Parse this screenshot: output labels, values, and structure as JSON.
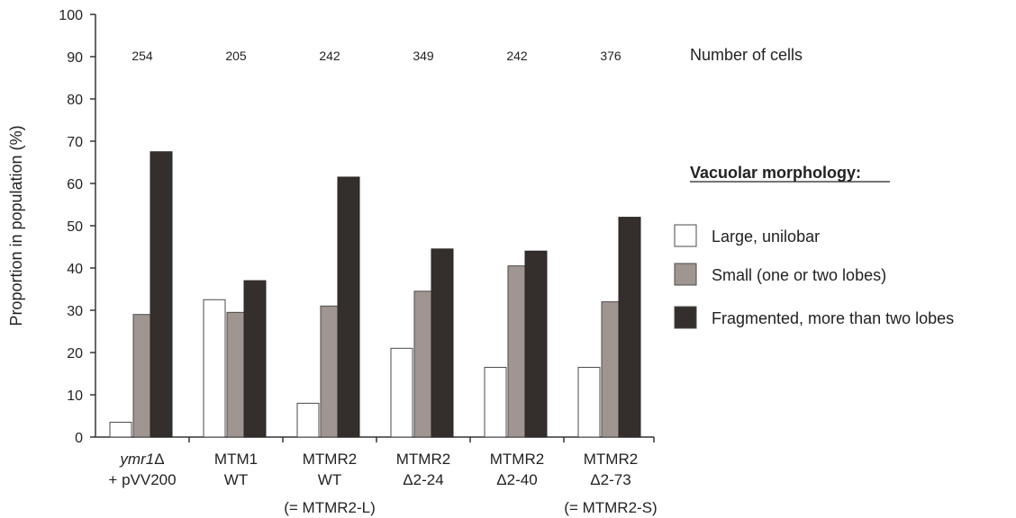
{
  "chart_data": {
    "type": "bar",
    "ylabel": "Proportion in population (%)",
    "ylim": [
      0,
      100
    ],
    "yticks": [
      0,
      10,
      20,
      30,
      40,
      50,
      60,
      70,
      80,
      90,
      100
    ],
    "categories": [
      {
        "line1": "ymr1Δ",
        "line1_italic": "ymr1",
        "line1_suffix": "Δ",
        "line2": "+ pVV200",
        "line3": ""
      },
      {
        "line1": "MTM1",
        "line1_italic": "",
        "line1_suffix": "MTM1",
        "line2": "WT",
        "line3": ""
      },
      {
        "line1": "MTMR2",
        "line1_italic": "",
        "line1_suffix": "MTMR2",
        "line2": "WT",
        "line3": "(= MTMR2-L)"
      },
      {
        "line1": "MTMR2",
        "line1_italic": "",
        "line1_suffix": "MTMR2",
        "line2": "Δ2-24",
        "line3": ""
      },
      {
        "line1": "MTMR2",
        "line1_italic": "",
        "line1_suffix": "MTMR2",
        "line2": "Δ2-40",
        "line3": ""
      },
      {
        "line1": "MTMR2",
        "line1_italic": "",
        "line1_suffix": "MTMR2",
        "line2": "Δ2-73",
        "line3": "(= MTMR2-S)"
      }
    ],
    "cell_counts": [
      "254",
      "205",
      "242",
      "349",
      "242",
      "376"
    ],
    "cell_counts_label": "Number of cells",
    "legend_title": "Vacuolar morphology:",
    "legend_position": "right",
    "series": [
      {
        "name": "Large, unilobar",
        "color": "#ffffff",
        "values": [
          3.5,
          32.5,
          8,
          21,
          16.5,
          16.5
        ]
      },
      {
        "name": "Small (one or two lobes)",
        "color": "#a09590",
        "values": [
          29,
          29.5,
          31,
          34.5,
          40.5,
          32
        ]
      },
      {
        "name": "Fragmented, more than two lobes",
        "color": "#342f2c",
        "values": [
          67.5,
          37,
          61.5,
          44.5,
          44,
          52
        ]
      }
    ]
  }
}
